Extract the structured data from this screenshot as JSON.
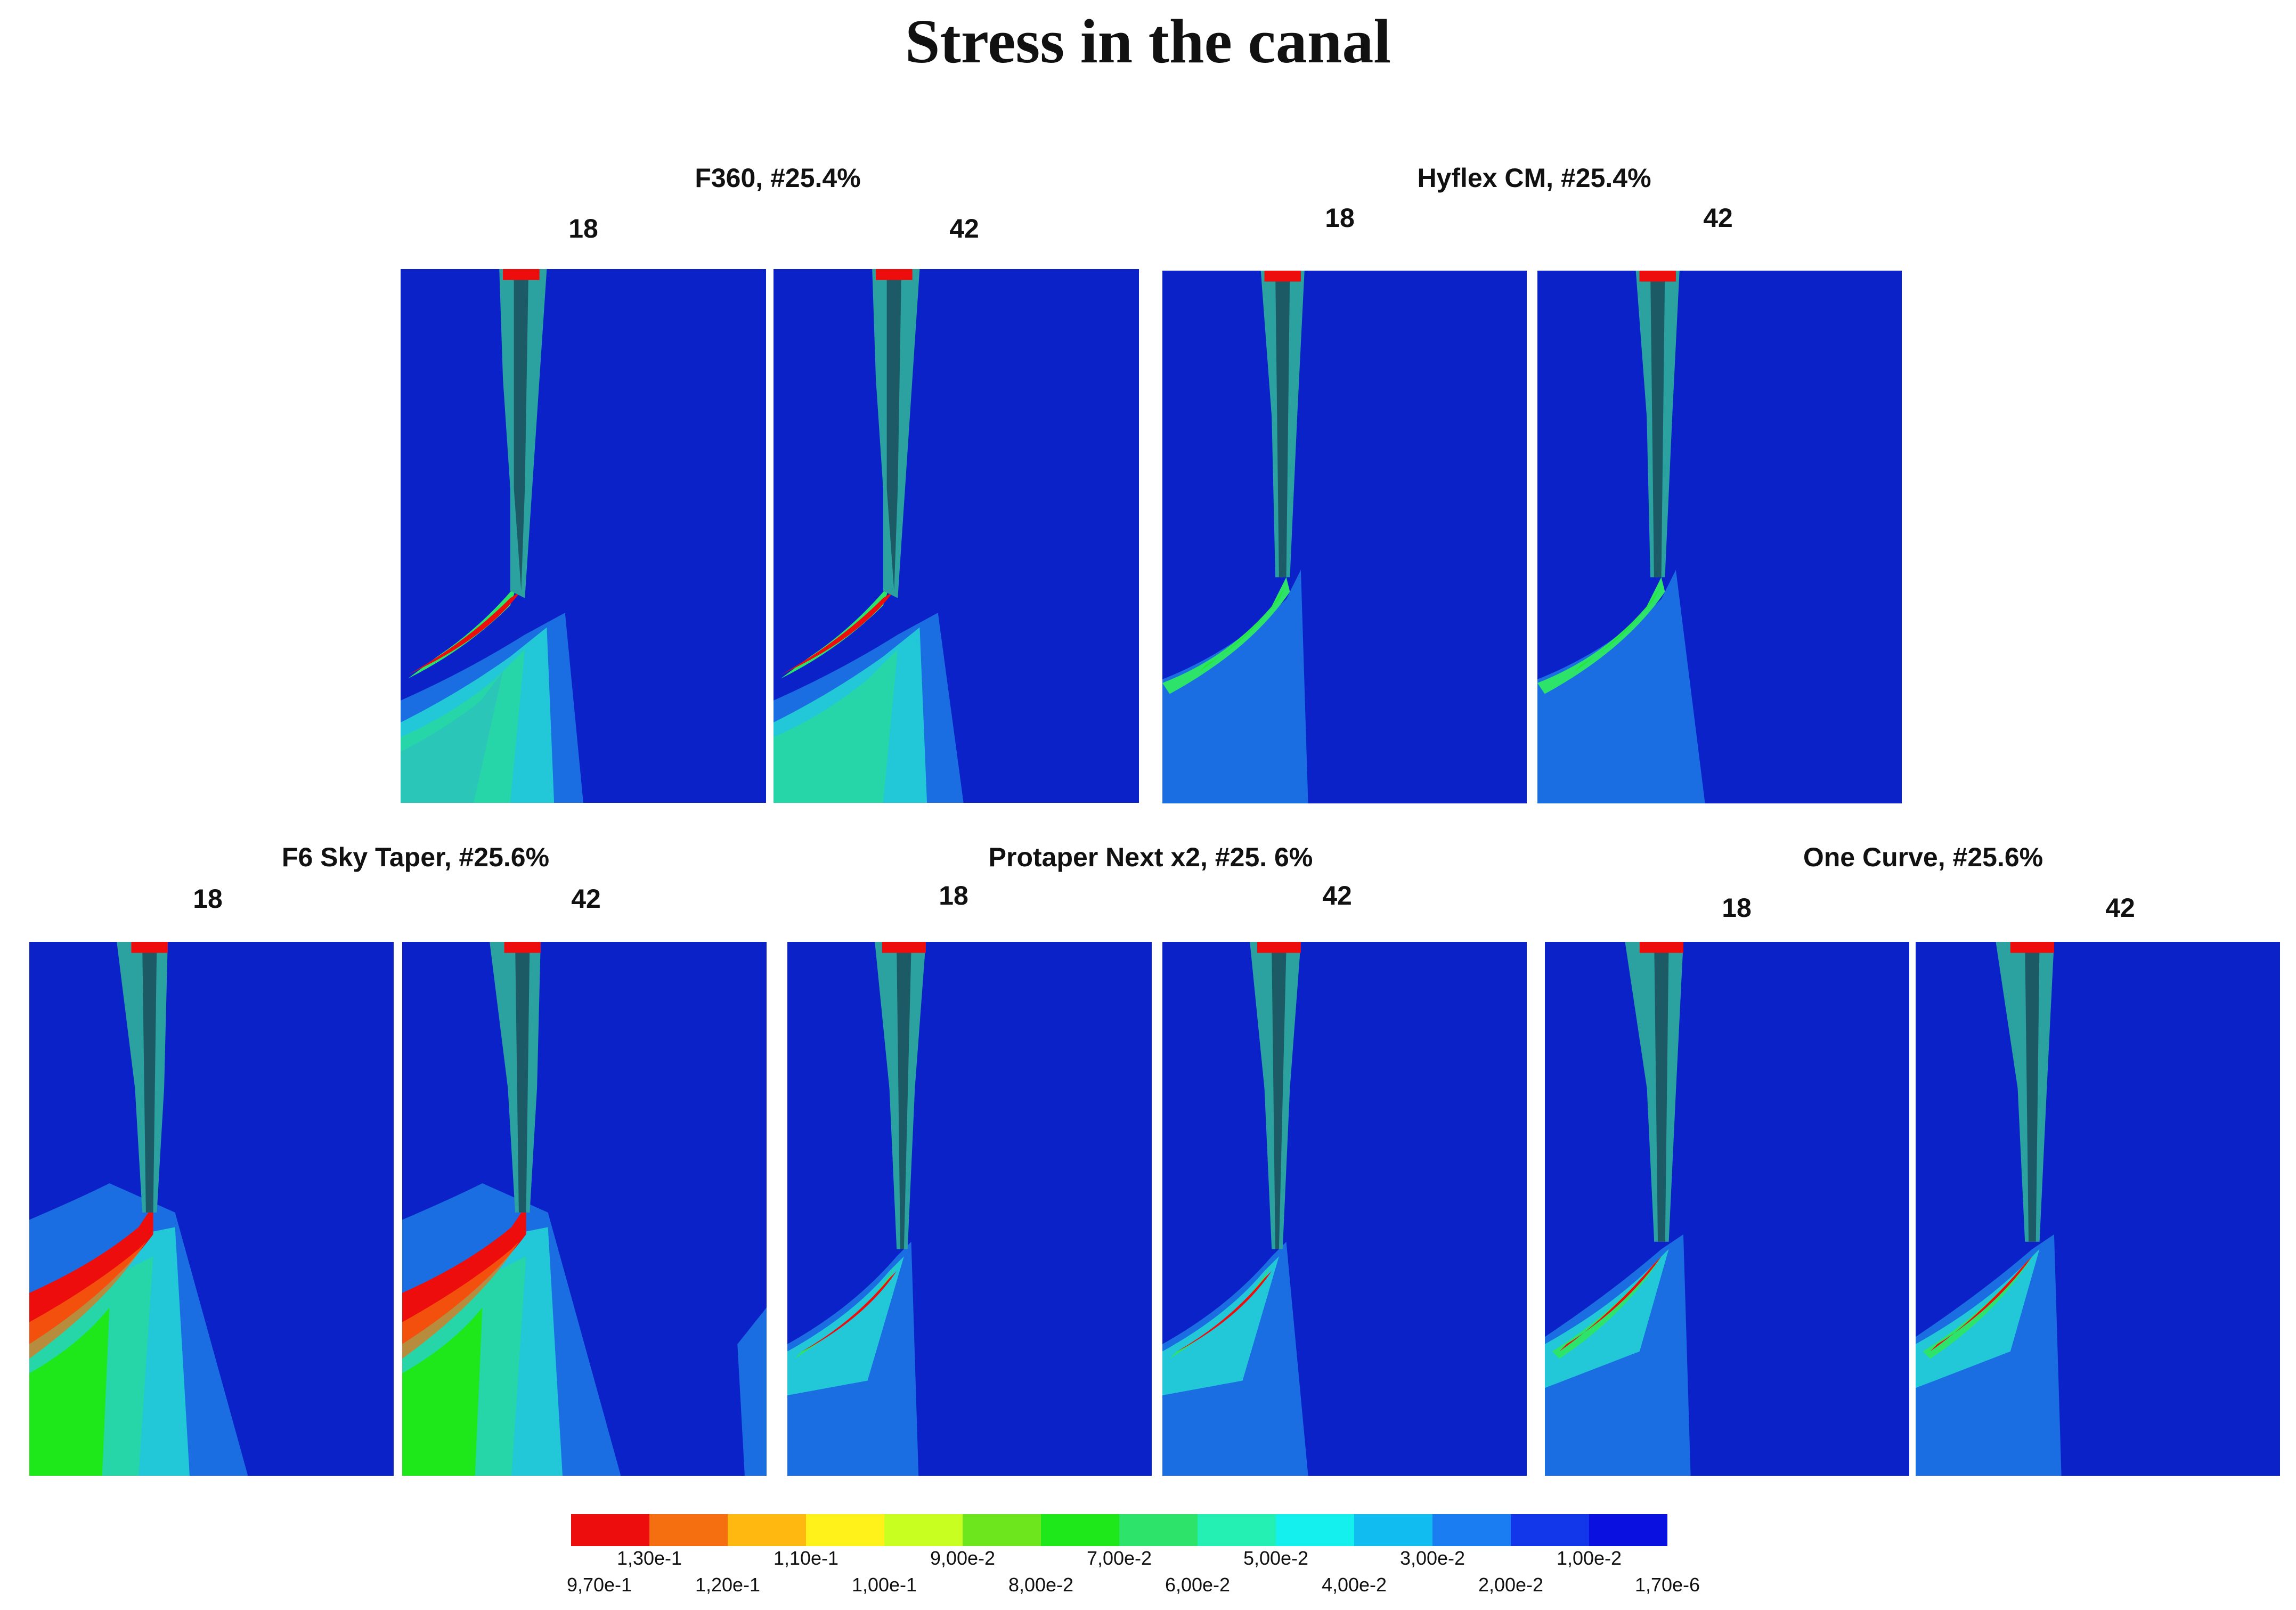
{
  "title": "Stress in the canal",
  "groups": [
    {
      "name": "F360, #25.4%",
      "left_label": "18",
      "right_label": "42"
    },
    {
      "name": "Hyflex CM, #25.4%",
      "left_label": "18",
      "right_label": "42"
    },
    {
      "name": "F6 Sky Taper, #25.6%",
      "left_label": "18",
      "right_label": "42"
    },
    {
      "name": "Protaper Next x2, #25. 6%",
      "left_label": "18",
      "right_label": "42"
    },
    {
      "name": "One Curve, #25.6%",
      "left_label": "18",
      "right_label": "42"
    }
  ],
  "legend": {
    "colors": [
      "#ee0d0d",
      "#f56e10",
      "#ffb810",
      "#fff21a",
      "#c8ff20",
      "#6ee61e",
      "#1ee81a",
      "#2ee36a",
      "#24f0b4",
      "#14f0ee",
      "#10bcf0",
      "#1a7ef2",
      "#1236ea",
      "#0a10e0"
    ],
    "labels_top": [
      "1,30e-1",
      "1,10e-1",
      "9,00e-2",
      "7,00e-2",
      "5,00e-2",
      "3,00e-2",
      "1,00e-2"
    ],
    "labels_bottom": [
      "9,70e-1",
      "1,20e-1",
      "1,00e-1",
      "8,00e-2",
      "6,00e-2",
      "4,00e-2",
      "2,00e-2",
      "1,70e-6"
    ]
  }
}
